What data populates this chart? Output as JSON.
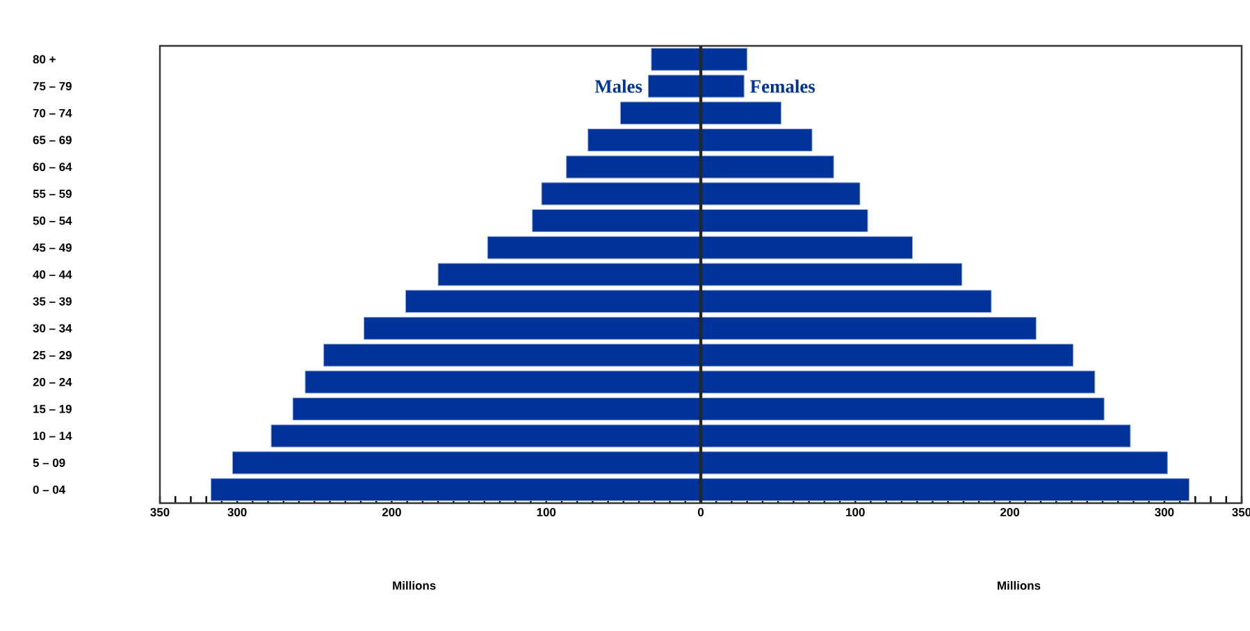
{
  "chart_data": {
    "type": "bar",
    "orientation": "horizontal",
    "stacked": true,
    "annotations": [
      "Millions",
      "Millions"
    ],
    "categories": [
      "80 +",
      "75 – 79",
      "70 – 74",
      "65 – 69",
      "60 – 64",
      "55 – 59",
      "50 – 54",
      "45 – 49",
      "40 – 44",
      "35 – 39",
      "30 – 34",
      "25 – 29",
      "20 – 24",
      "15 – 19",
      "10 – 14",
      "5 – 09",
      "0 – 04"
    ],
    "series": [
      {
        "name": "Males",
        "color": "#003399",
        "values": [
          -32,
          -34,
          -52,
          -73,
          -87,
          -103,
          -109,
          -138,
          -170,
          -191,
          -218,
          -244,
          -256,
          -264,
          -278,
          -303,
          -317
        ]
      },
      {
        "name": "Females",
        "color": "#003399",
        "values": [
          30,
          28,
          52,
          72,
          86,
          103,
          108,
          137,
          169,
          188,
          217,
          241,
          255,
          261,
          278,
          302,
          316
        ]
      }
    ],
    "xlim": [
      -350,
      350
    ],
    "xticks": [
      {
        "value": -350,
        "label": "350"
      },
      {
        "value": -340,
        "label": null
      },
      {
        "value": -330,
        "label": null
      },
      {
        "value": -320,
        "label": null
      },
      {
        "value": -310,
        "label": null
      },
      {
        "value": -300,
        "label": "300"
      },
      {
        "value": -290,
        "label": null
      },
      {
        "value": -280,
        "label": null
      },
      {
        "value": -270,
        "label": null
      },
      {
        "value": -260,
        "label": null
      },
      {
        "value": -250,
        "label": null
      },
      {
        "value": -240,
        "label": null
      },
      {
        "value": -230,
        "label": null
      },
      {
        "value": -220,
        "label": null
      },
      {
        "value": -210,
        "label": null
      },
      {
        "value": -200,
        "label": "200"
      },
      {
        "value": -190,
        "label": null
      },
      {
        "value": -180,
        "label": null
      },
      {
        "value": -170,
        "label": null
      },
      {
        "value": -160,
        "label": null
      },
      {
        "value": -150,
        "label": null
      },
      {
        "value": -140,
        "label": null
      },
      {
        "value": -130,
        "label": null
      },
      {
        "value": -120,
        "label": null
      },
      {
        "value": -110,
        "label": null
      },
      {
        "value": -100,
        "label": "100"
      },
      {
        "value": -90,
        "label": null
      },
      {
        "value": -80,
        "label": null
      },
      {
        "value": -70,
        "label": null
      },
      {
        "value": -60,
        "label": null
      },
      {
        "value": -50,
        "label": null
      },
      {
        "value": -40,
        "label": null
      },
      {
        "value": -30,
        "label": null
      },
      {
        "value": -20,
        "label": null
      },
      {
        "value": -10,
        "label": null
      },
      0,
      {
        "value": 10,
        "label": null
      },
      {
        "value": 20,
        "label": null
      },
      {
        "value": 30,
        "label": null
      },
      {
        "value": 40,
        "label": null
      },
      {
        "value": 50,
        "label": null
      },
      {
        "value": 60,
        "label": null
      },
      {
        "value": 70,
        "label": null
      },
      {
        "value": 80,
        "label": null
      },
      {
        "value": 90,
        "label": null
      },
      100,
      {
        "value": 110,
        "label": null
      },
      {
        "value": 120,
        "label": null
      },
      {
        "value": 130,
        "label": null
      },
      {
        "value": 140,
        "label": null
      },
      {
        "value": 150,
        "label": null
      },
      {
        "value": 160,
        "label": null
      },
      {
        "value": 170,
        "label": null
      },
      {
        "value": 180,
        "label": null
      },
      {
        "value": 190,
        "label": null
      },
      200,
      {
        "value": 210,
        "label": null
      },
      {
        "value": 220,
        "label": null
      },
      {
        "value": 230,
        "label": null
      },
      {
        "value": 240,
        "label": null
      },
      {
        "value": 250,
        "label": null
      },
      {
        "value": 260,
        "label": null
      },
      {
        "value": 270,
        "label": null
      },
      {
        "value": 280,
        "label": null
      },
      {
        "value": 290,
        "label": null
      },
      300,
      {
        "value": 310,
        "label": null
      },
      {
        "value": 320,
        "label": null
      },
      {
        "value": 330,
        "label": null
      },
      {
        "value": 340,
        "label": null
      },
      350
    ]
  }
}
